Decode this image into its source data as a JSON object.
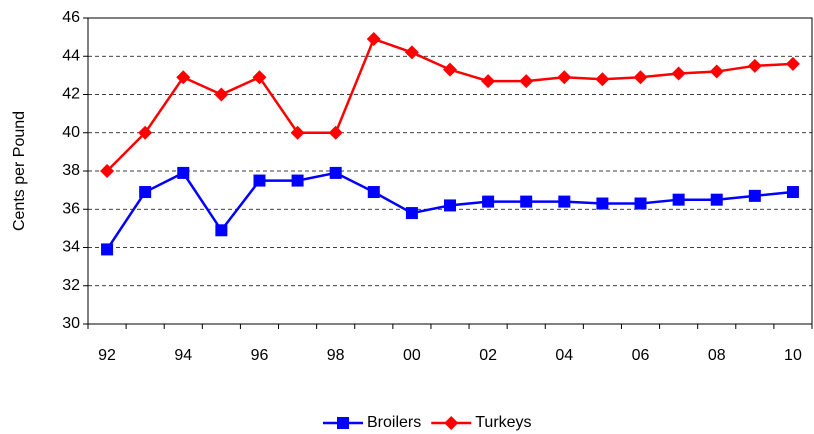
{
  "chart_data": {
    "type": "line",
    "y_label": "Cents per Pound",
    "categories": [
      "92",
      null,
      "94",
      null,
      "96",
      null,
      "98",
      null,
      "00",
      null,
      "02",
      null,
      "04",
      null,
      "06",
      null,
      "08",
      null,
      "10"
    ],
    "series": [
      {
        "name": "Broilers",
        "color": "#0000ff",
        "marker": "square",
        "values": [
          33.9,
          36.9,
          37.9,
          34.9,
          37.5,
          37.5,
          37.9,
          36.9,
          35.8,
          36.2,
          36.4,
          36.4,
          36.4,
          36.3,
          36.3,
          36.5,
          36.5,
          36.7,
          36.9
        ]
      },
      {
        "name": "Turkeys",
        "color": "#ff0000",
        "marker": "diamond",
        "values": [
          38,
          40,
          42.9,
          42,
          42.9,
          40,
          40,
          44.9,
          44.2,
          43.3,
          42.7,
          42.7,
          42.9,
          42.8,
          42.9,
          43.1,
          43.2,
          43.5,
          43.6
        ]
      }
    ],
    "ylim": [
      30,
      46
    ],
    "yticks": [
      30,
      32,
      34,
      36,
      38,
      40,
      42,
      44,
      46
    ],
    "grid": true,
    "legend": "bottom"
  }
}
